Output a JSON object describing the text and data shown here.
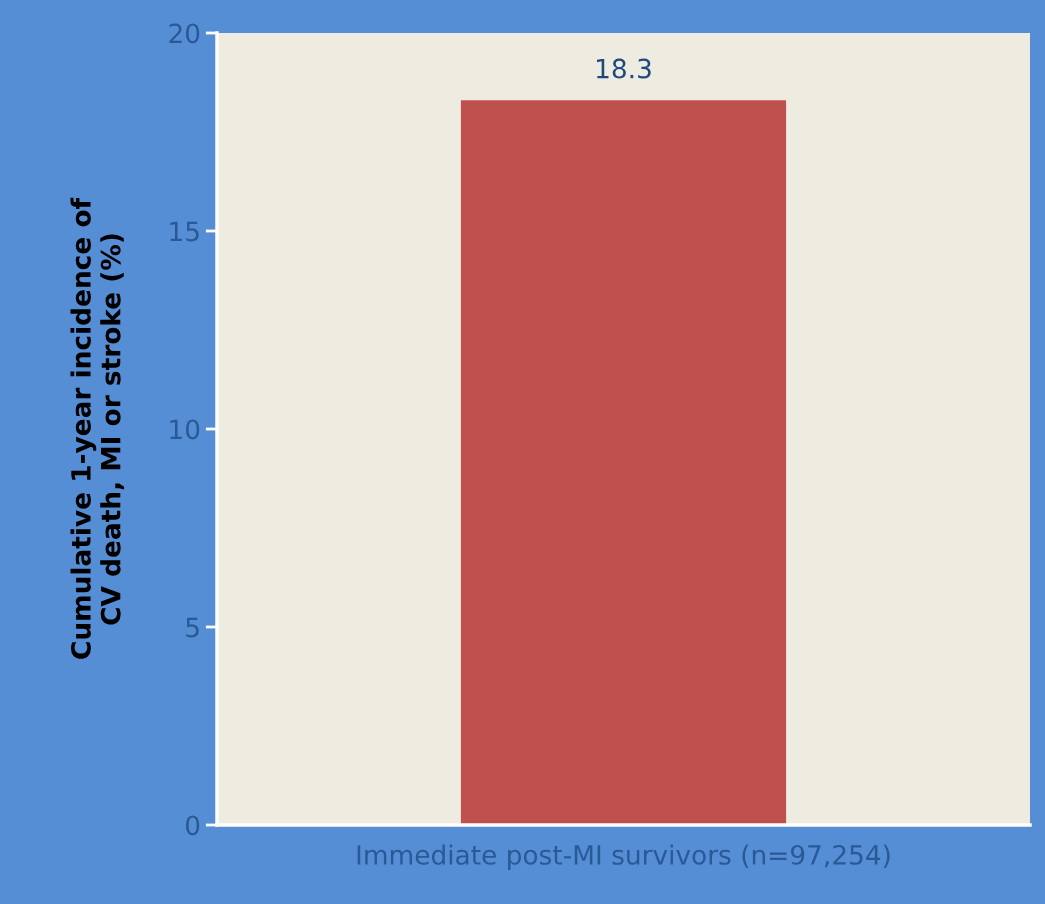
{
  "chart_data": {
    "type": "bar",
    "ylabel": "Cumulative 1-year incidence of\nCV death, MI or stroke (%)",
    "categories": [
      "Immediate post-MI survivors (n=97,254)"
    ],
    "values": [
      18.3
    ],
    "color": "#c0504d",
    "ylim": [
      0,
      20
    ],
    "yticks": [
      0,
      5,
      10,
      15,
      20
    ],
    "grid": false,
    "data_labels": true
  }
}
